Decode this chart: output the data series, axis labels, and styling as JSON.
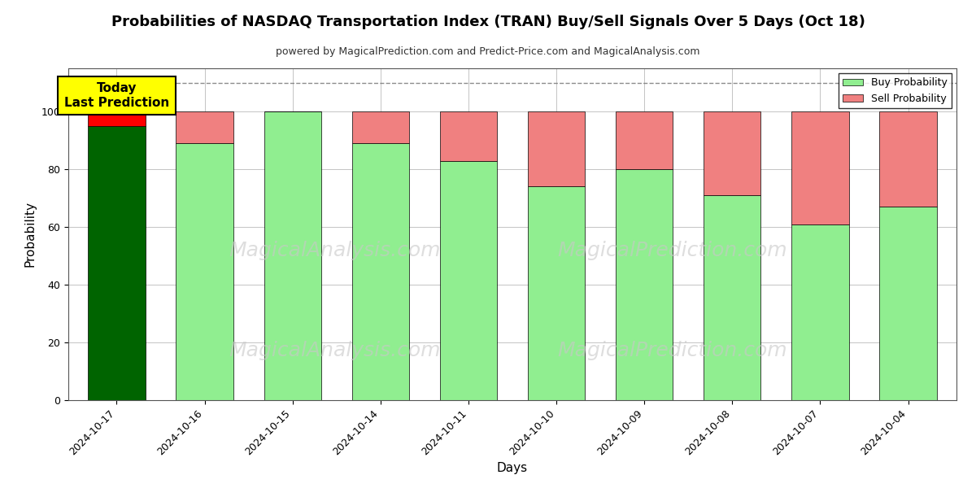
{
  "title": "Probabilities of NASDAQ Transportation Index (TRAN) Buy/Sell Signals Over 5 Days (Oct 18)",
  "subtitle": "powered by MagicalPrediction.com and Predict-Price.com and MagicalAnalysis.com",
  "xlabel": "Days",
  "ylabel": "Probability",
  "dates": [
    "2024-10-17",
    "2024-10-16",
    "2024-10-15",
    "2024-10-14",
    "2024-10-11",
    "2024-10-10",
    "2024-10-09",
    "2024-10-08",
    "2024-10-07",
    "2024-10-04"
  ],
  "buy_values": [
    95,
    89,
    100,
    89,
    83,
    74,
    80,
    71,
    61,
    67
  ],
  "sell_values": [
    5,
    11,
    0,
    11,
    17,
    26,
    20,
    29,
    39,
    33
  ],
  "today_bar_buy_color": "#006400",
  "today_bar_sell_color": "#FF0000",
  "buy_color": "#90EE90",
  "sell_color": "#F08080",
  "today_annotation_bg": "#FFFF00",
  "today_annotation_text": "Today\nLast Prediction",
  "ylim": [
    0,
    115
  ],
  "dashed_line_y": 110,
  "legend_buy_label": "Buy Probability",
  "legend_sell_label": "Sell Probability",
  "bar_edgecolor": "#000000",
  "bar_linewidth": 0.5,
  "grid_color": "#aaaaaa",
  "background_color": "#ffffff",
  "yticks": [
    0,
    20,
    40,
    60,
    80,
    100
  ]
}
